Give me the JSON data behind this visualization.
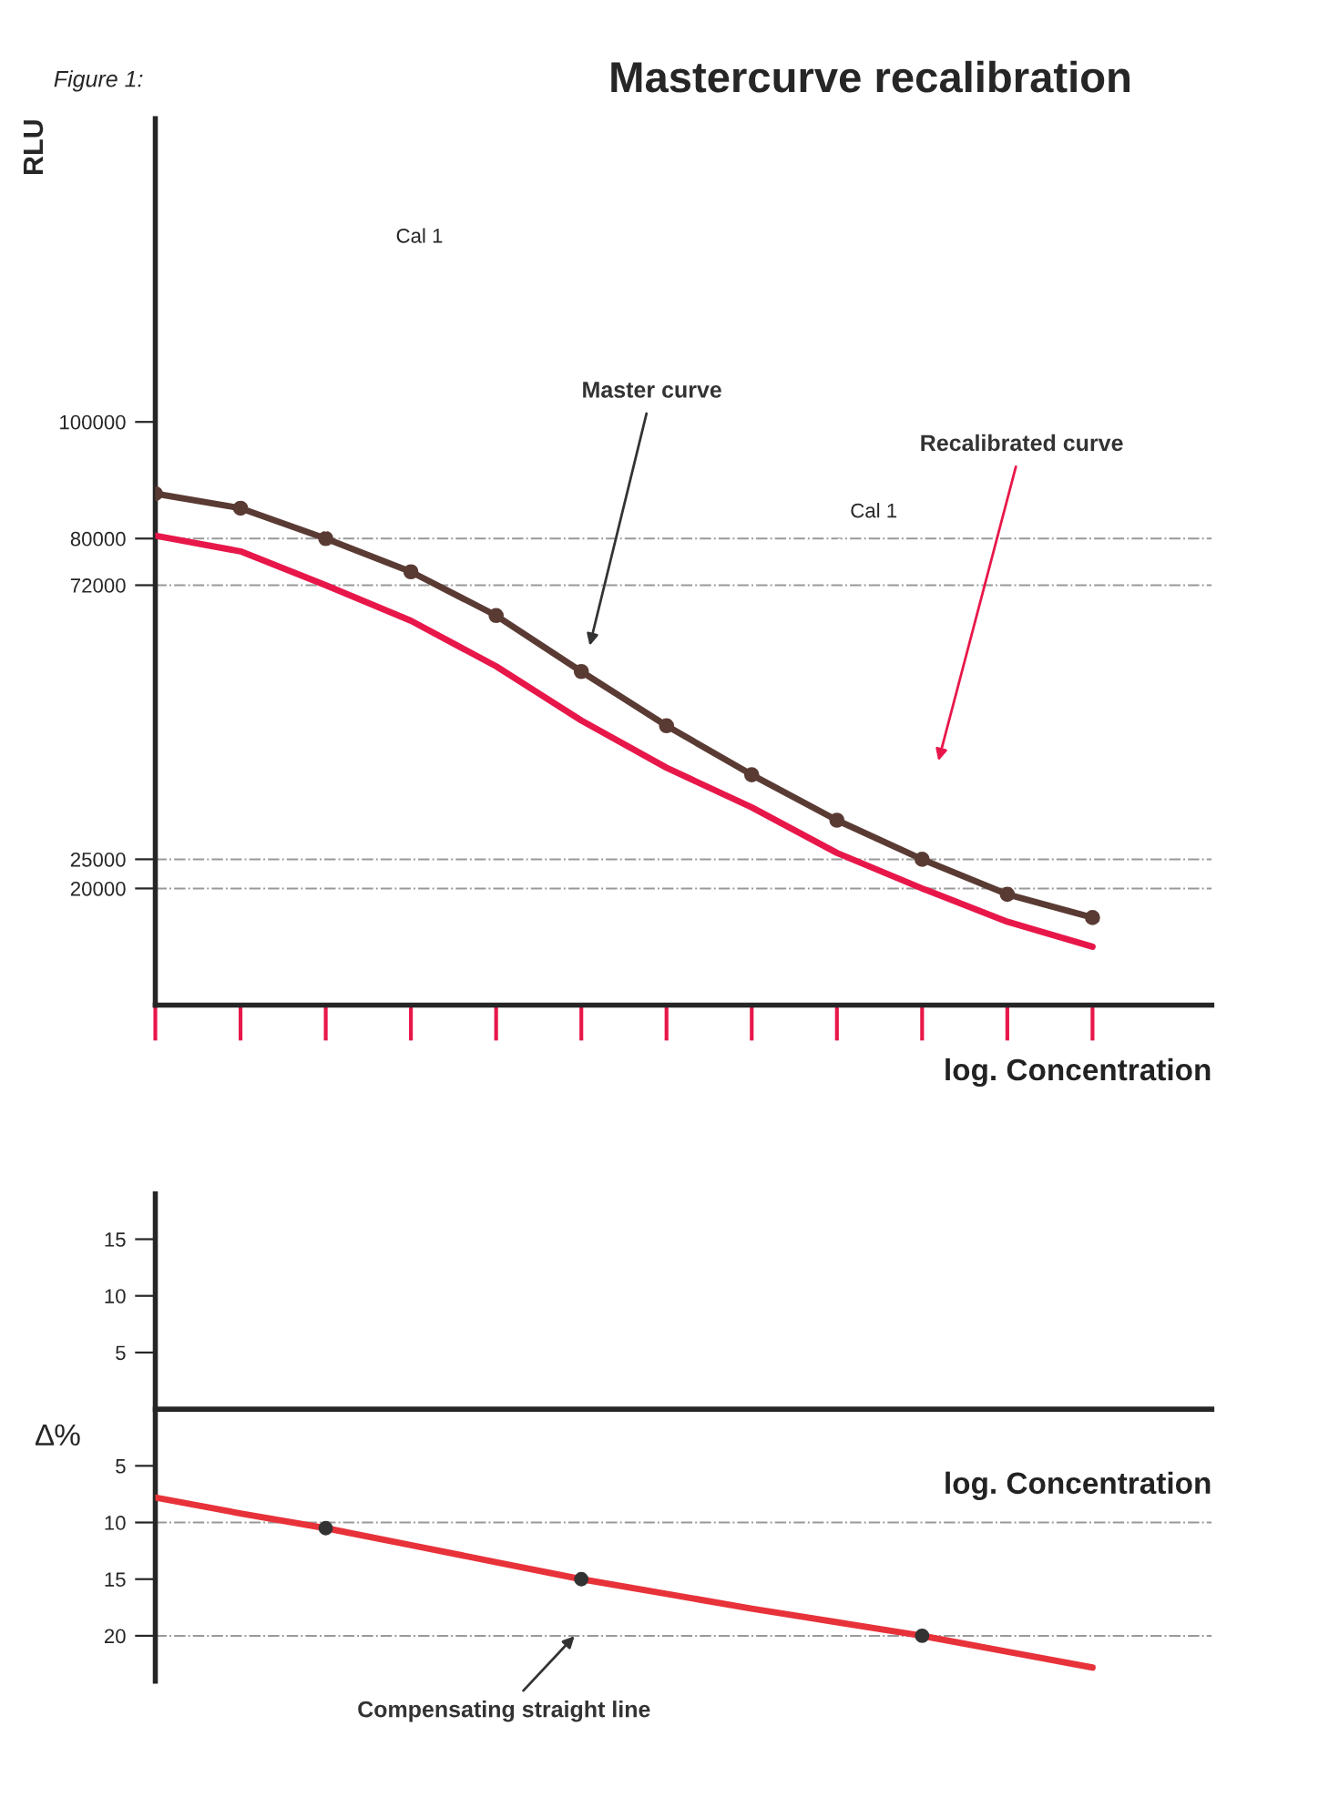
{
  "chart_data": [
    {
      "type": "line",
      "title": "Mastercurve recalibration",
      "xlabel": "log. Concentration",
      "ylabel": "RLU",
      "categories": [
        null,
        null,
        null,
        null,
        null,
        null,
        null,
        null,
        null,
        null,
        null,
        null
      ],
      "series": [
        {
          "name": "Master curve",
          "color": "#5a3b34",
          "marker": "circle",
          "values": [
            87700,
            85200,
            80000,
            74300,
            66800,
            57200,
            47900,
            39500,
            31700,
            25000,
            19000,
            15000
          ]
        },
        {
          "name": "Recalibrated curve",
          "color": "#e8174a",
          "marker": "none",
          "values": [
            80500,
            77800,
            72000,
            65900,
            58100,
            48800,
            40700,
            33900,
            26100,
            20000,
            14300,
            10000
          ]
        }
      ],
      "ylim": [
        0,
        152000
      ],
      "yticks": [
        20000,
        25000,
        72000,
        80000,
        100000
      ],
      "ref_lines": [
        {
          "axis": "y",
          "value": 80000
        },
        {
          "axis": "y",
          "value": 72000
        },
        {
          "axis": "y",
          "value": 25000
        },
        {
          "axis": "y",
          "value": 20000
        }
      ],
      "annotations": [
        "Figure 1:",
        "Cal 1",
        "Cal 1"
      ],
      "grid": false,
      "legend": false,
      "line_style": "solid"
    },
    {
      "type": "line",
      "xlabel": "log. Concentration",
      "ylabel": "∆%",
      "categories": [
        null,
        null,
        null,
        null,
        null,
        null,
        null,
        null,
        null,
        null,
        null,
        null
      ],
      "series": [
        {
          "name": "Compensating straight line",
          "color": "#e8323a",
          "values": [
            -7.8,
            -9.2,
            -10.5,
            -12,
            -13.5,
            -15,
            -16.3,
            -17.6,
            -18.8,
            -20,
            -21.4,
            -22.8
          ]
        },
        {
          "type": "scatter",
          "color": "#333333",
          "values": [
            null,
            null,
            -10.5,
            null,
            null,
            -15,
            null,
            null,
            null,
            -20,
            null,
            null
          ]
        }
      ],
      "ylim": [
        -24,
        19
      ],
      "yticks": [
        {
          "value": 15,
          "label": "15"
        },
        {
          "value": 10,
          "label": "10"
        },
        {
          "value": 5,
          "label": "5"
        },
        {
          "value": -5,
          "label": "5"
        },
        {
          "value": -10,
          "label": "10"
        },
        {
          "value": -15,
          "label": "15"
        },
        {
          "value": -20,
          "label": "20"
        }
      ],
      "ref_lines": [
        {
          "axis": "y",
          "value": -10
        },
        {
          "axis": "y",
          "value": -20
        }
      ],
      "grid": false,
      "legend": false,
      "line_style": "solid"
    }
  ]
}
